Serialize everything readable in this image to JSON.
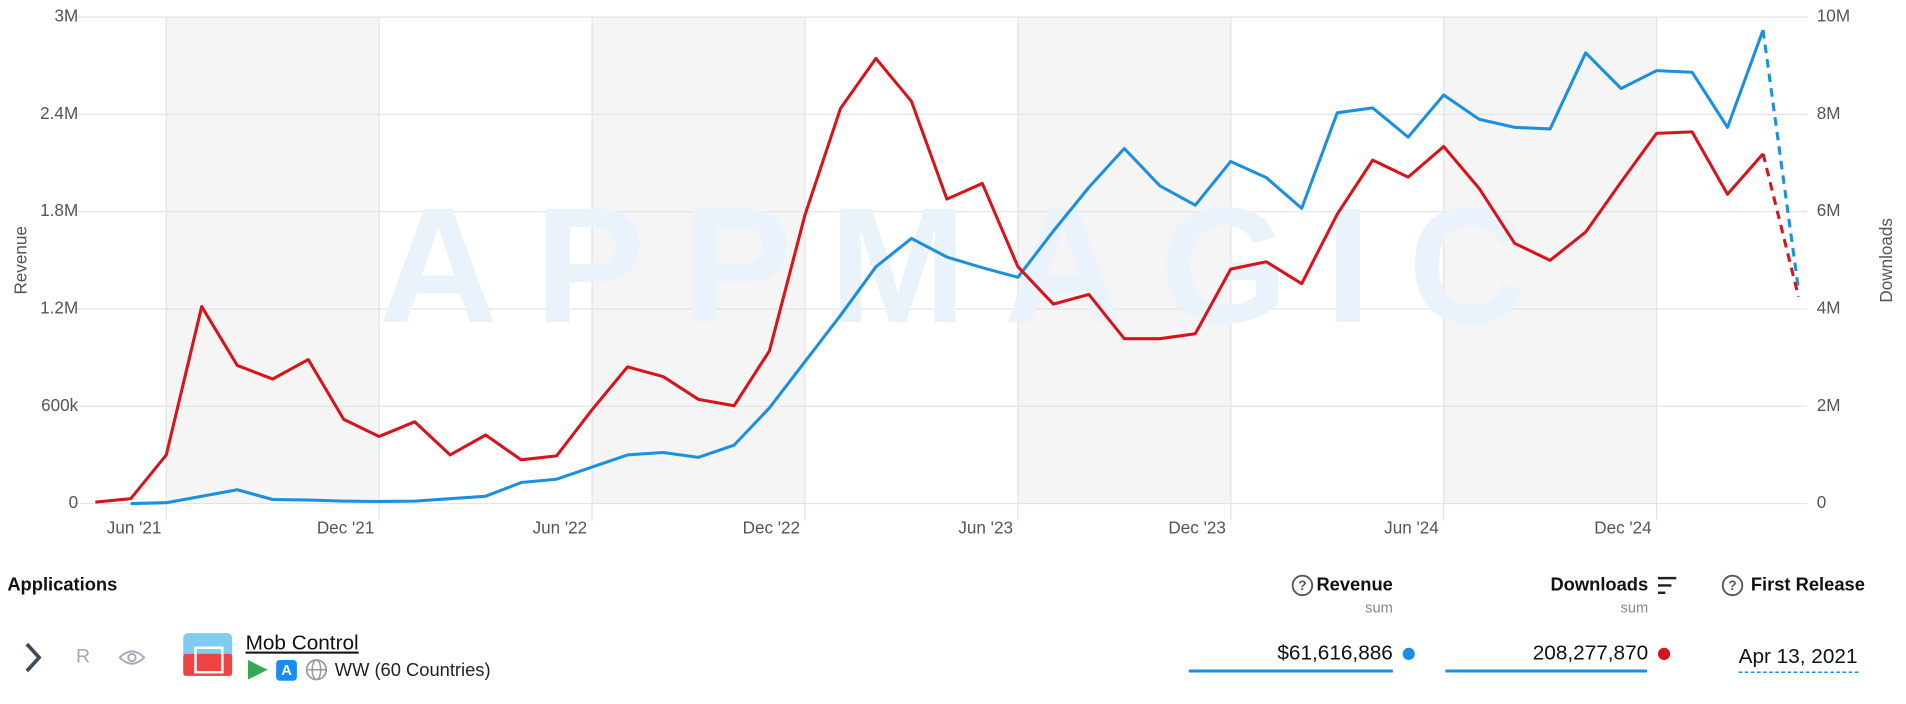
{
  "chart_data": {
    "type": "line",
    "ylabel": "Revenue",
    "y2label": "Downloads",
    "watermark": "APPMAGIC",
    "categories": [
      null,
      null,
      "Jun '21",
      null,
      null,
      null,
      null,
      null,
      "Dec '21",
      null,
      null,
      null,
      null,
      null,
      "Jun '22",
      null,
      null,
      null,
      null,
      null,
      "Dec '22",
      null,
      null,
      null,
      null,
      null,
      "Jun '23",
      null,
      null,
      null,
      null,
      null,
      "Dec '23",
      null,
      null,
      null,
      null,
      null,
      "Jun '24",
      null,
      null,
      null,
      null,
      null,
      "Dec '24",
      null,
      null,
      null,
      null
    ],
    "series": [
      {
        "color": "#1b8fe0",
        "axis": "y",
        "values": [
          null,
          0,
          5000,
          45000,
          85000,
          25000,
          22000,
          15000,
          13000,
          15000,
          30000,
          45000,
          130000,
          150000,
          225000,
          300000,
          315000,
          285000,
          360000,
          590000,
          875000,
          1160000,
          1460000,
          1635000,
          1520000,
          1455000,
          1395000,
          1680000,
          1950000,
          2190000,
          1960000,
          1840000,
          2110000,
          2010000,
          1820000,
          2410000,
          2440000,
          2260000,
          2520000,
          2370000,
          2320000,
          2310000,
          2780000,
          2560000,
          2670000,
          2660000,
          2320000,
          2920000,
          1320000
        ]
      },
      {
        "color": "#d7141a",
        "axis": "y2",
        "values": [
          30000,
          100000,
          1000000,
          4050000,
          2840000,
          2560000,
          2960000,
          1730000,
          1380000,
          1680000,
          1000000,
          1410000,
          900000,
          980000,
          1930000,
          2810000,
          2610000,
          2140000,
          2010000,
          3140000,
          5930000,
          8120000,
          9150000,
          8270000,
          6260000,
          6580000,
          4870000,
          4100000,
          4300000,
          3390000,
          3390000,
          3490000,
          4820000,
          4970000,
          4520000,
          5950000,
          7060000,
          6710000,
          7340000,
          6480000,
          5350000,
          5000000,
          5580000,
          6610000,
          7610000,
          7640000,
          6360000,
          7190000,
          4250000
        ]
      }
    ],
    "dashed_last_segment": true,
    "ylim": [
      0,
      3000000
    ],
    "yticks": [
      0,
      {
        "value": 600000,
        "label": "600k"
      },
      {
        "value": 1200000,
        "label": "1.2M"
      },
      {
        "value": 1800000,
        "label": "1.8M"
      },
      {
        "value": 2400000,
        "label": "2.4M"
      },
      {
        "value": 3000000,
        "label": "3M"
      }
    ],
    "y2lim": [
      0,
      10000000
    ],
    "y2ticks": [
      0,
      {
        "value": 2000000,
        "label": "2M"
      },
      {
        "value": 4000000,
        "label": "4M"
      },
      {
        "value": 6000000,
        "label": "6M"
      },
      {
        "value": 8000000,
        "label": "8M"
      },
      {
        "value": 10000000,
        "label": "10M"
      }
    ],
    "grid": true
  },
  "table": {
    "headers": {
      "applications": "Applications",
      "revenue": "Revenue",
      "revenue_sub": "sum",
      "downloads": "Downloads",
      "downloads_sub": "sum",
      "first_release": "First Release"
    },
    "row": {
      "badge": "R",
      "name": "Mob Control",
      "region": "WW (60 Countries)",
      "revenue": "$61,616,886",
      "downloads": "208,277,870",
      "first_release": "Apr 13, 2021"
    }
  }
}
